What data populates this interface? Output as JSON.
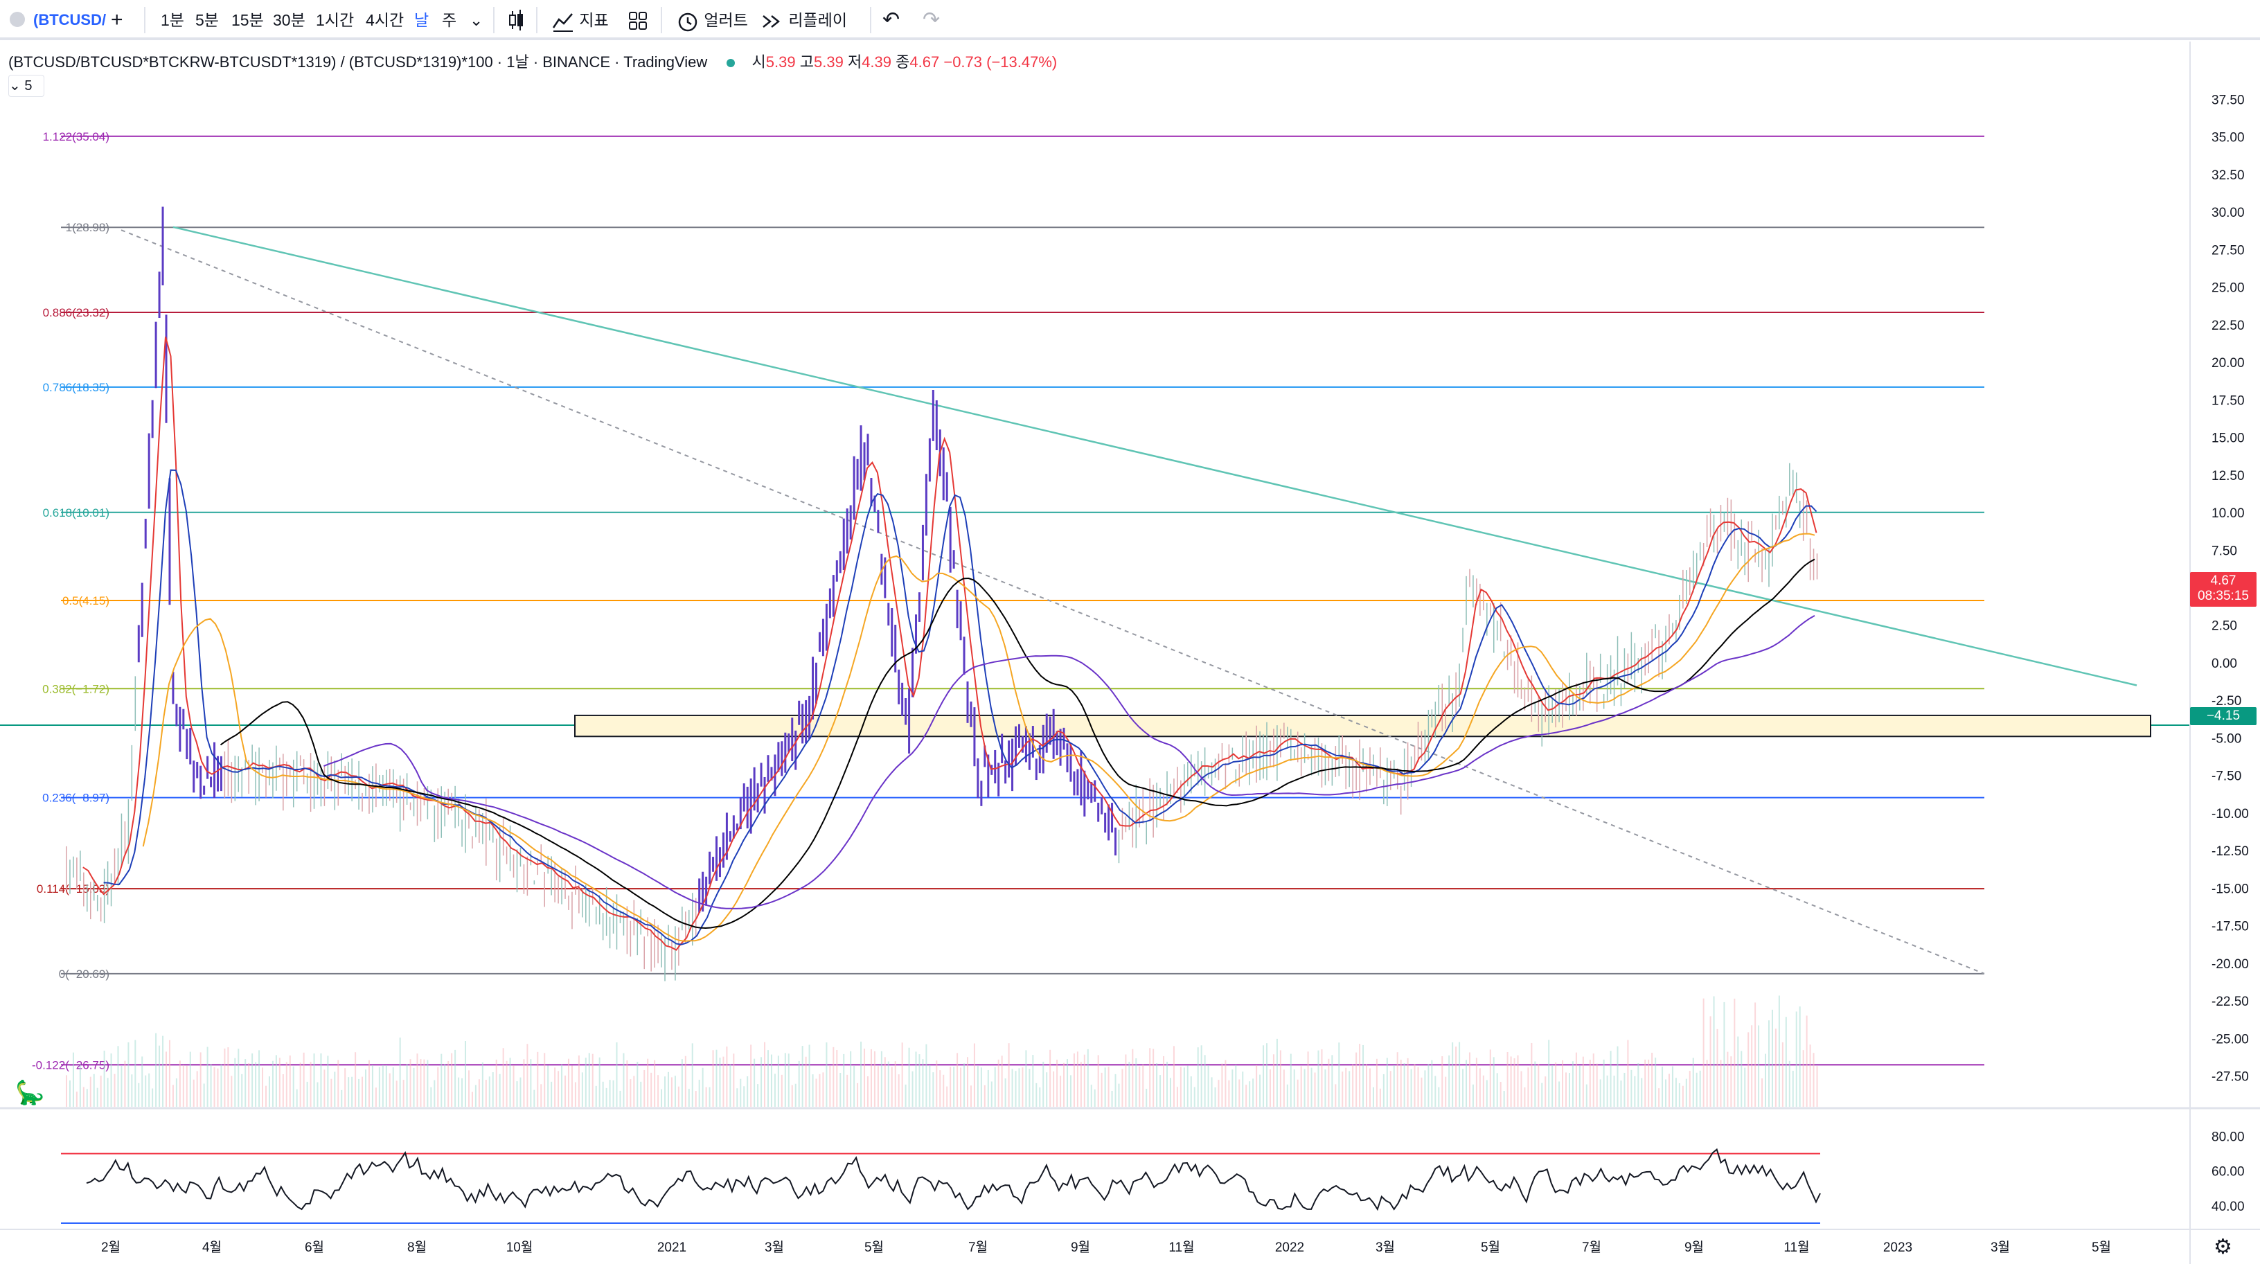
{
  "toolbar": {
    "symbol": "(BTCUSD/",
    "add_symbol": "+",
    "intervals": [
      "1분",
      "5분",
      "15분",
      "30분",
      "1시간",
      "4시간",
      "날",
      "주"
    ],
    "interval_dropdown": "⌄",
    "indicators_label": "지표",
    "alert_label": "얼러트",
    "replay_label": "리플레이",
    "undo": "↶",
    "redo": "↷"
  },
  "legend": {
    "title": "(BTCUSD/BTCUSD*BTCKRW-BTCUSDT*1319) / (BTCUSD*1319)*100 · 1날 · BINANCE · TradingView",
    "open_label": "시",
    "open": "5.39",
    "high_label": "고",
    "high": "5.39",
    "low_label": "저",
    "low": "4.39",
    "close_label": "종",
    "close": "4.67",
    "change": "−0.73 (−13.47%)",
    "ma_length": "5"
  },
  "price_tag": {
    "price": "4.67",
    "countdown": "08:35:15"
  },
  "level_tag": "−4.15",
  "colors": {
    "up": "#089981",
    "down": "#f23645",
    "candle": "#5b3cc4",
    "ma_fast": "#e53935",
    "ma_mid": "#1e3fb8",
    "ma_slow": "#f5a623",
    "ma_long": "#000000",
    "ma_200": "#6a33c8",
    "trendline": "#5fc4b4",
    "zone_fill": "#fff6d6"
  },
  "chart_data": {
    "type": "candlestick",
    "symbol": "(BTCUSD/BTCUSD*BTCKRW-BTCUSDT*1319) / (BTCUSD*1319)*100",
    "exchange": "BINANCE",
    "interval": "1날",
    "y_range": [
      -29.5,
      39.5
    ],
    "y_ticks": [
      "37.50",
      "35.00",
      "32.50",
      "30.00",
      "27.50",
      "25.00",
      "22.50",
      "20.00",
      "17.50",
      "15.00",
      "12.50",
      "10.00",
      "7.50",
      "5.00",
      "2.50",
      "0.00",
      "-2.50",
      "-5.00",
      "-7.50",
      "-10.00",
      "-12.50",
      "-15.00",
      "-17.50",
      "-20.00",
      "-22.50",
      "-25.00",
      "-27.50"
    ],
    "x_labels": [
      "2월",
      "4월",
      "6월",
      "8월",
      "10월",
      "2021",
      "3월",
      "5월",
      "7월",
      "9월",
      "11월",
      "2022",
      "3월",
      "5월",
      "7월",
      "9월",
      "11월",
      "2023",
      "3월",
      "5월"
    ],
    "fib_levels": [
      {
        "label": "1.122(35.04)",
        "value": 35.04,
        "color": "#9c27b0"
      },
      {
        "label": "1(28.98)",
        "value": 28.98,
        "color": "#787b86"
      },
      {
        "label": "0.886(23.32)",
        "value": 23.32,
        "color": "#b71c3c"
      },
      {
        "label": "0.786(18.35)",
        "value": 18.35,
        "color": "#2196f3"
      },
      {
        "label": "0.618(10.01)",
        "value": 10.01,
        "color": "#26a69a"
      },
      {
        "label": "0.5(4.15)",
        "value": 4.15,
        "color": "#ff9800"
      },
      {
        "label": "0.382(−1.72)",
        "value": -1.72,
        "color": "#9bbb2c"
      },
      {
        "label": "0.236(−8.97)",
        "value": -8.97,
        "color": "#2962ff"
      },
      {
        "label": "0.114(−15.03)",
        "value": -15.03,
        "color": "#b71c1c"
      },
      {
        "label": "0(−20.69)",
        "value": -20.69,
        "color": "#787b86"
      },
      {
        "label": "-0.122(−26.75)",
        "value": -26.75,
        "color": "#9c27b0"
      }
    ],
    "horizontal_level": -4.15,
    "zone": {
      "top": -3.5,
      "bottom": -4.9
    },
    "last_close": 4.67,
    "key_prices": [
      {
        "t": 0.0,
        "v": -13.5
      },
      {
        "t": 0.02,
        "v": -16.0
      },
      {
        "t": 0.035,
        "v": -11.0
      },
      {
        "t": 0.055,
        "v": 28.9
      },
      {
        "t": 0.06,
        "v": -2.0
      },
      {
        "t": 0.075,
        "v": -7.5
      },
      {
        "t": 0.14,
        "v": -7.5
      },
      {
        "t": 0.22,
        "v": -10.0
      },
      {
        "t": 0.3,
        "v": -16.5
      },
      {
        "t": 0.345,
        "v": -19.5
      },
      {
        "t": 0.375,
        "v": -12.0
      },
      {
        "t": 0.42,
        "v": -4.5
      },
      {
        "t": 0.455,
        "v": 14.5
      },
      {
        "t": 0.48,
        "v": -5.0
      },
      {
        "t": 0.495,
        "v": 17.4
      },
      {
        "t": 0.52,
        "v": -8.0
      },
      {
        "t": 0.56,
        "v": -5.0
      },
      {
        "t": 0.6,
        "v": -11.5
      },
      {
        "t": 0.65,
        "v": -7.0
      },
      {
        "t": 0.7,
        "v": -5.5
      },
      {
        "t": 0.76,
        "v": -8.0
      },
      {
        "t": 0.795,
        "v": -1.5
      },
      {
        "t": 0.8,
        "v": 6.0
      },
      {
        "t": 0.84,
        "v": -3.5
      },
      {
        "t": 0.91,
        "v": 1.0
      },
      {
        "t": 0.94,
        "v": 9.5
      },
      {
        "t": 0.97,
        "v": 7.0
      },
      {
        "t": 0.985,
        "v": 12.5
      },
      {
        "t": 1.0,
        "v": 4.67
      }
    ],
    "rsi": {
      "y_ticks": [
        "80.00",
        "60.00",
        "40.00"
      ],
      "upper": 70,
      "lower": 30
    }
  }
}
